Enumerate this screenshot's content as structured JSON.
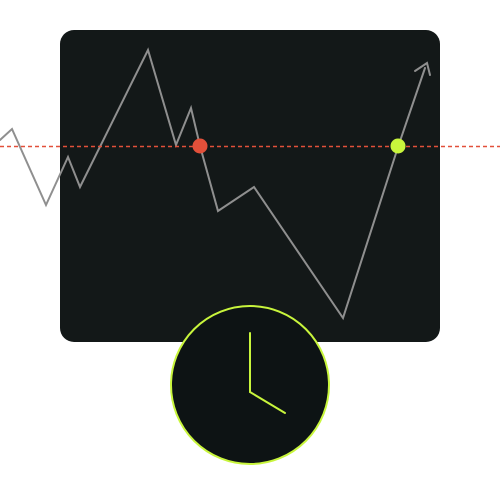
{
  "colors": {
    "page_background": "#ffffff",
    "panel_background": "#131818",
    "price_line": "#8f8f8f",
    "threshold_line": "#e2503a",
    "entry_marker": "#e2503a",
    "exit_marker": "#c8f53c",
    "clock_face": "#0d1314",
    "clock_accent": "#c8f53c"
  },
  "icons": {
    "trend_arrow": "arrow-up-right-icon",
    "clock": "clock-icon"
  },
  "clock_time": "4:00"
}
